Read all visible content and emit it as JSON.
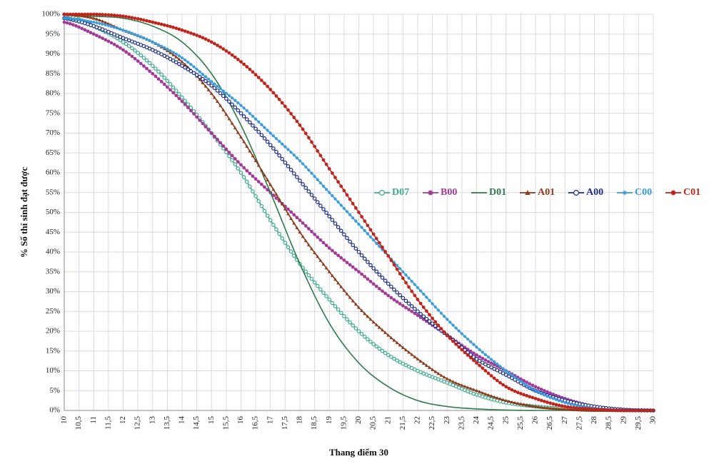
{
  "chart_data": {
    "type": "line",
    "xlabel": "Thang điểm 30",
    "ylabel": "% Số thí sinh đạt được",
    "xlim": [
      10,
      30
    ],
    "ylim": [
      0,
      100
    ],
    "x_ticks": [
      "10",
      "10,5",
      "11",
      "11,5",
      "12",
      "12,5",
      "13",
      "13,5",
      "14",
      "14,5",
      "15",
      "15,5",
      "16",
      "16,5",
      "17",
      "17,5",
      "18",
      "18,5",
      "19",
      "19,5",
      "20",
      "20,5",
      "21",
      "21,5",
      "22",
      "22,5",
      "23",
      "23,5",
      "24",
      "24,5",
      "25",
      "25,5",
      "26",
      "26,5",
      "27",
      "27,5",
      "28",
      "28,5",
      "29",
      "29,5",
      "30"
    ],
    "y_ticks": [
      "0%",
      "5%",
      "10%",
      "15%",
      "20%",
      "25%",
      "30%",
      "35%",
      "40%",
      "45%",
      "50%",
      "55%",
      "60%",
      "65%",
      "70%",
      "75%",
      "80%",
      "85%",
      "90%",
      "95%",
      "100%"
    ],
    "grid": true,
    "legend_position": "right-middle",
    "x": [
      10,
      11,
      12,
      13,
      14,
      15,
      16,
      17,
      18,
      19,
      20,
      21,
      22,
      23,
      24,
      25,
      26,
      27,
      28,
      29,
      30
    ],
    "series": [
      {
        "name": "D07",
        "color": "#3cab8c",
        "marker": "open-circle",
        "values": [
          100,
          97,
          93,
          87,
          79,
          70,
          60,
          48,
          37,
          28,
          20,
          14,
          10,
          7,
          4,
          2,
          1,
          0.5,
          0.2,
          0,
          0
        ]
      },
      {
        "name": "B00",
        "color": "#a23b96",
        "marker": "filled-circle",
        "values": [
          98,
          95,
          91,
          85,
          78,
          70,
          62,
          55,
          48,
          41,
          35,
          29,
          24,
          19,
          14,
          10,
          6,
          3,
          1,
          0,
          0
        ]
      },
      {
        "name": "D01",
        "color": "#2f7a4a",
        "marker": "line",
        "values": [
          100,
          99.5,
          99,
          97,
          93,
          85,
          72,
          55,
          37,
          22,
          12,
          6,
          2.5,
          1,
          0.4,
          0.1,
          0,
          0,
          0,
          0,
          0
        ]
      },
      {
        "name": "A01",
        "color": "#8b3a1a",
        "marker": "triangle",
        "values": [
          100,
          99,
          96,
          93,
          88,
          80,
          69,
          57,
          45,
          35,
          26,
          19,
          13,
          8,
          5,
          2.5,
          1,
          0.3,
          0,
          0,
          0
        ]
      },
      {
        "name": "A00",
        "color": "#1c2d8a",
        "marker": "open-circle",
        "values": [
          99,
          97,
          94,
          91,
          87,
          82,
          75,
          67,
          58,
          49,
          40,
          32,
          25,
          19,
          13,
          9,
          5,
          2.5,
          1,
          0.2,
          0
        ]
      },
      {
        "name": "C00",
        "color": "#3a9bd8",
        "marker": "star",
        "values": [
          99,
          98,
          96,
          93,
          89,
          83,
          77,
          70,
          63,
          55,
          47,
          39,
          31,
          23,
          16,
          10,
          5,
          2,
          0.5,
          0,
          0
        ]
      },
      {
        "name": "C01",
        "color": "#c0241a",
        "marker": "filled-circle",
        "values": [
          100,
          100,
          99.5,
          98,
          96,
          93,
          88,
          81,
          72,
          61,
          50,
          39,
          28,
          19,
          12,
          6,
          3,
          1,
          0.3,
          0,
          0
        ]
      }
    ]
  }
}
